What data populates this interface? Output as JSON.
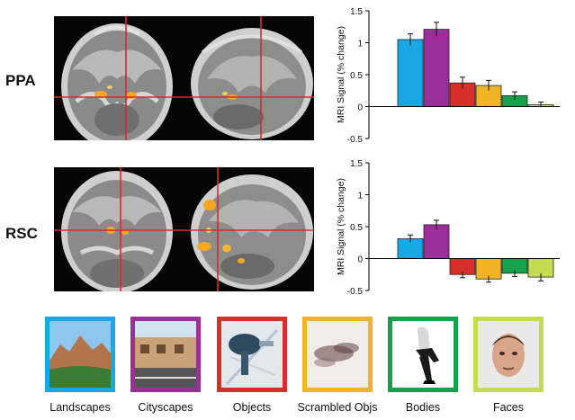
{
  "rows": [
    {
      "label": "PPA"
    },
    {
      "label": "RSC"
    }
  ],
  "colors": {
    "landscapes": "#1aa7e6",
    "cityscapes": "#9b2f9a",
    "objects": "#d7302a",
    "scrambled": "#f3b326",
    "bodies": "#15a24a",
    "faces": "#c5db52",
    "crosshair": "#e0262b",
    "activation": "#f5a623"
  },
  "categories": [
    "Landscapes",
    "Cityscapes",
    "Objects",
    "Scrambled Objs",
    "Bodies",
    "Faces"
  ],
  "chart_data": [
    {
      "type": "bar",
      "title": "",
      "ylabel": "MRI Signal (% change)",
      "ylim": [
        -0.5,
        1.5
      ],
      "yticks": [
        "-0.5",
        "0",
        "0.5",
        "1",
        "1.5"
      ],
      "categories": [
        "Landscapes",
        "Cityscapes",
        "Objects",
        "Scrambled Objs",
        "Bodies",
        "Faces"
      ],
      "values": [
        1.05,
        1.21,
        0.37,
        0.33,
        0.17,
        0.03
      ],
      "errors": [
        0.09,
        0.11,
        0.09,
        0.08,
        0.06,
        0.04
      ]
    },
    {
      "type": "bar",
      "title": "",
      "ylabel": "MRI Signal (% change)",
      "ylim": [
        -0.5,
        1.5
      ],
      "yticks": [
        "-0.5",
        "0",
        "0.5",
        "1",
        "1.5"
      ],
      "categories": [
        "Landscapes",
        "Cityscapes",
        "Objects",
        "Scrambled Objs",
        "Bodies",
        "Faces"
      ],
      "values": [
        0.31,
        0.53,
        -0.25,
        -0.32,
        -0.23,
        -0.29
      ],
      "errors": [
        0.06,
        0.07,
        0.05,
        0.05,
        0.05,
        0.06
      ]
    }
  ]
}
